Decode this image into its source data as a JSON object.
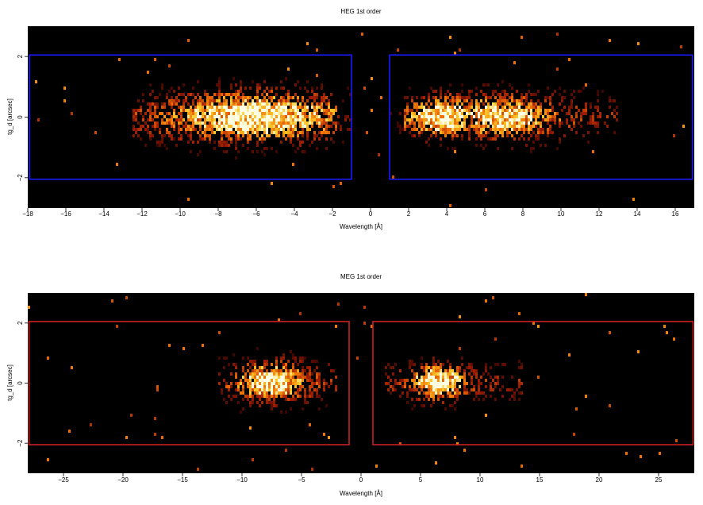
{
  "chart_data": [
    {
      "type": "heatmap",
      "title": "HEG 1st order",
      "xlabel": "Wavelength [Å]",
      "ylabel": "tg_d [arcsec]",
      "xlim": [
        -18,
        17
      ],
      "ylim": [
        -3,
        3
      ],
      "xticks": [
        -18,
        -16,
        -14,
        -12,
        -10,
        -8,
        -6,
        -4,
        -2,
        0,
        2,
        4,
        6,
        8,
        10,
        12,
        14,
        16
      ],
      "yticks": [
        -2,
        0,
        2
      ],
      "background": "#000000",
      "region_color": "#1a1aff",
      "regions": [
        {
          "x": [
            -17.9,
            -1.0
          ],
          "y": [
            -2.05,
            2.05
          ]
        },
        {
          "x": [
            1.0,
            16.9
          ],
          "y": [
            -2.05,
            2.05
          ]
        }
      ],
      "blobs": [
        {
          "x_range": [
            -12.5,
            -1.8
          ],
          "center": -6.0,
          "spread_x": 2.8,
          "spread_y": 0.55,
          "peak": 1.0
        },
        {
          "x_range": [
            1.8,
            13.0
          ],
          "center": 3.8,
          "spread_x": 1.2,
          "spread_y": 0.45,
          "peak": 1.0
        },
        {
          "x_range": [
            1.8,
            13.0
          ],
          "center": 6.8,
          "spread_x": 1.8,
          "spread_y": 0.5,
          "peak": 0.85
        }
      ]
    },
    {
      "type": "heatmap",
      "title": "MEG 1st order",
      "xlabel": "Wavelength [Å]",
      "ylabel": "tg_d [arcsec]",
      "xlim": [
        -28,
        28
      ],
      "ylim": [
        -3,
        3
      ],
      "xticks": [
        -25,
        -20,
        -15,
        -10,
        -5,
        0,
        5,
        10,
        15,
        20,
        25
      ],
      "yticks": [
        -2,
        0,
        2
      ],
      "background": "#000000",
      "region_color": "#cc2020",
      "regions": [
        {
          "x": [
            -27.9,
            -1.0
          ],
          "y": [
            -2.05,
            2.05
          ]
        },
        {
          "x": [
            1.0,
            27.9
          ],
          "y": [
            -2.05,
            2.05
          ]
        }
      ],
      "blobs": [
        {
          "x_range": [
            -12.0,
            -2.0
          ],
          "center": -7.5,
          "spread_x": 1.8,
          "spread_y": 0.45,
          "peak": 1.0
        },
        {
          "x_range": [
            2.0,
            13.5
          ],
          "center": 6.5,
          "spread_x": 1.5,
          "spread_y": 0.4,
          "peak": 1.0
        }
      ]
    }
  ]
}
